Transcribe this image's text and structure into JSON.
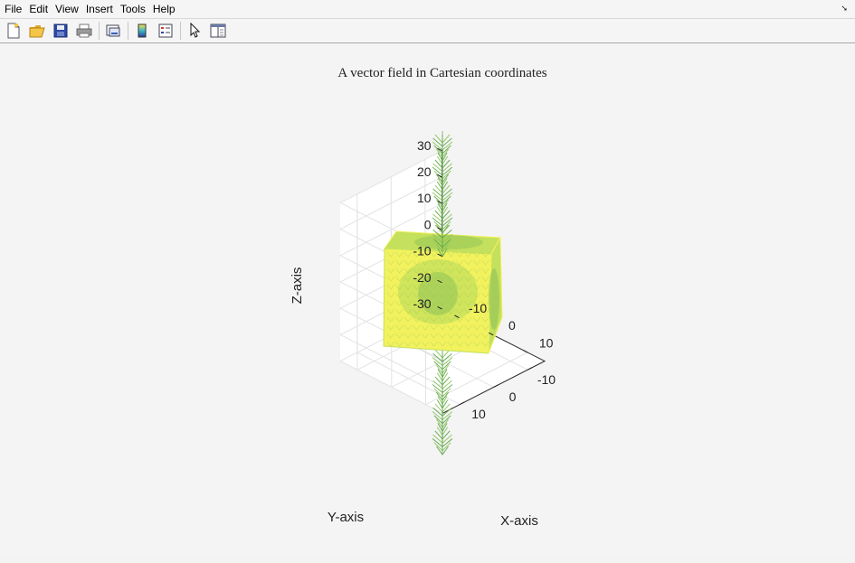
{
  "menu": {
    "items": [
      "File",
      "Edit",
      "View",
      "Insert",
      "Tools",
      "Help"
    ],
    "dock_icon": "undock-arrow-icon"
  },
  "toolbar": {
    "buttons": [
      {
        "name": "new-figure-button",
        "icon": "new-file-icon"
      },
      {
        "name": "open-file-button",
        "icon": "folder-open-icon"
      },
      {
        "name": "save-figure-button",
        "icon": "floppy-disk-icon"
      },
      {
        "name": "print-figure-button",
        "icon": "printer-icon"
      },
      {
        "name": "link-axes-button",
        "icon": "link-plot-icon"
      },
      {
        "name": "insert-colorbar-button",
        "icon": "colorbar-icon"
      },
      {
        "name": "insert-legend-button",
        "icon": "legend-icon"
      },
      {
        "name": "edit-plot-button",
        "icon": "pointer-arrow-icon"
      },
      {
        "name": "property-inspector-button",
        "icon": "property-panel-icon"
      }
    ]
  },
  "chart_data": {
    "type": "quiver3",
    "title": "A vector field in Cartesian coordinates",
    "xlabel": "X-axis",
    "ylabel": "Y-axis",
    "zlabel": "Z-axis",
    "x_ticks": [
      "-10",
      "0",
      "10"
    ],
    "y_ticks": [
      "10",
      "0",
      "-10"
    ],
    "z_ticks": [
      "30",
      "20",
      "10",
      "0",
      "-10",
      "-20",
      "-30"
    ],
    "xlim": [
      -15,
      15
    ],
    "ylim": [
      -15,
      15
    ],
    "zlim": [
      -30,
      30
    ],
    "grid": true,
    "colors": {
      "yellow": "#f2f25e",
      "light_green": "#c4e05c",
      "green": "#8fc257",
      "dark_green": "#5ea84d"
    }
  }
}
